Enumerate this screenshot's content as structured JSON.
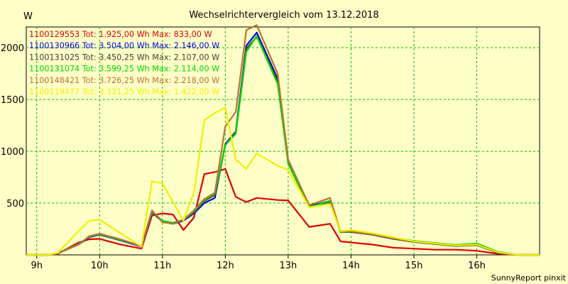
{
  "chart_data": {
    "type": "line",
    "title": "Wechselrichtervergleich vom 13.12.2018",
    "ylabel": "W",
    "xlabel": "",
    "footer": "SunnyReport pinxit",
    "grid": true,
    "legend_position": "top-left",
    "ylim": [
      0,
      2200
    ],
    "xlim": [
      8.8333,
      17.0
    ],
    "y_ticks": [
      {
        "value": 500,
        "label": "500"
      },
      {
        "value": 1000,
        "label": "1000"
      },
      {
        "value": 1500,
        "label": "1500"
      },
      {
        "value": 2000,
        "label": "2000"
      }
    ],
    "x_ticks": [
      {
        "value": 9,
        "label": "9h"
      },
      {
        "value": 10,
        "label": "10h"
      },
      {
        "value": 11,
        "label": "11h"
      },
      {
        "value": 12,
        "label": "12h"
      },
      {
        "value": 13,
        "label": "13h"
      },
      {
        "value": 14,
        "label": "14h"
      },
      {
        "value": 15,
        "label": "15h"
      },
      {
        "value": 16,
        "label": "16h"
      }
    ],
    "x": [
      8.8333,
      9.1667,
      9.3333,
      9.6667,
      9.8333,
      10.0,
      10.3333,
      10.6667,
      10.8333,
      11.0,
      11.1667,
      11.3333,
      11.5,
      11.6667,
      11.8333,
      12.0,
      12.1667,
      12.3333,
      12.5,
      12.8333,
      13.0,
      13.3333,
      13.6667,
      13.8333,
      14.0,
      14.3333,
      14.6667,
      15.0,
      15.3333,
      15.6667,
      16.0,
      16.3333,
      16.6667,
      17.0
    ],
    "series": [
      {
        "name": "1100129553",
        "legend": "1100129553 Tot: 1.925,00 Wh Max: 833,00 W",
        "color": "#e00000",
        "values": [
          0,
          0,
          10,
          120,
          150,
          155,
          100,
          60,
          380,
          400,
          390,
          240,
          360,
          780,
          800,
          830,
          560,
          510,
          550,
          530,
          525,
          270,
          300,
          130,
          120,
          100,
          70,
          60,
          50,
          50,
          40,
          10,
          0,
          0
        ]
      },
      {
        "name": "1100130966",
        "legend": "1100130966 Tot: 3.504,00 Wh Max: 2.146,00 W",
        "color": "#0000e0",
        "values": [
          0,
          0,
          15,
          100,
          170,
          195,
          140,
          80,
          410,
          320,
          300,
          330,
          400,
          500,
          550,
          1070,
          1190,
          2020,
          2146,
          1700,
          900,
          470,
          520,
          220,
          220,
          200,
          160,
          130,
          110,
          90,
          100,
          20,
          0,
          0
        ]
      },
      {
        "name": "1100131025",
        "legend": "1100131025 Tot: 3.450,25 Wh Max: 2.107,00 W",
        "color": "#404040",
        "values": [
          0,
          0,
          15,
          105,
          175,
          200,
          145,
          85,
          415,
          325,
          305,
          335,
          410,
          520,
          580,
          1060,
          1180,
          1990,
          2107,
          1680,
          890,
          465,
          510,
          220,
          220,
          195,
          155,
          125,
          105,
          85,
          95,
          20,
          0,
          0
        ]
      },
      {
        "name": "1100131074",
        "legend": "1100131074 Tot: 3.599,25 Wh Max: 2.114,00 W",
        "color": "#00d800",
        "values": [
          0,
          0,
          15,
          105,
          175,
          200,
          145,
          85,
          420,
          330,
          310,
          340,
          420,
          530,
          590,
          1060,
          1170,
          1960,
          2114,
          1650,
          880,
          460,
          520,
          220,
          225,
          205,
          165,
          135,
          115,
          95,
          110,
          30,
          0,
          0
        ]
      },
      {
        "name": "1100148421",
        "legend": "1100148421 Tot: 3.726,25 Wh Max: 2.218,00 W",
        "color": "#b87333",
        "values": [
          0,
          0,
          15,
          100,
          180,
          205,
          150,
          85,
          430,
          315,
          300,
          340,
          430,
          540,
          600,
          1240,
          1380,
          2170,
          2218,
          1750,
          920,
          480,
          550,
          225,
          225,
          200,
          160,
          130,
          110,
          90,
          100,
          25,
          0,
          0
        ]
      },
      {
        "name": "1100119477",
        "legend": "1100119477 Tot: 3.331,25 Wh Max: 1.422,00 W",
        "color": "#f0f000",
        "values": [
          0,
          0,
          20,
          230,
          330,
          340,
          210,
          80,
          710,
          690,
          510,
          330,
          600,
          1300,
          1370,
          1422,
          920,
          830,
          980,
          860,
          820,
          460,
          490,
          230,
          240,
          210,
          170,
          130,
          110,
          90,
          100,
          25,
          0,
          0
        ]
      }
    ]
  }
}
